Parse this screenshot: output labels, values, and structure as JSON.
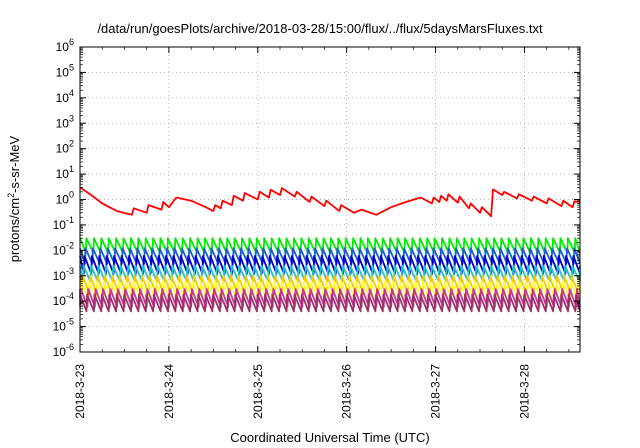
{
  "chart_data": {
    "type": "line",
    "title": "/data/run/goesPlots/archive/2018-03-28/15:00/flux/../flux/5daysMarsFluxes.txt",
    "xlabel": "Coordinated Universal Time (UTC)",
    "ylabel_main": "protons/cm",
    "ylabel_sup": "2",
    "ylabel_rest": "-s-sr-MeV",
    "x_scale": "time",
    "y_scale": "log",
    "xlim": [
      "2018-03-23T00:00",
      "2018-03-28T15:00"
    ],
    "ylim": [
      1e-06,
      1000000.0
    ],
    "grid": true,
    "legend": "none",
    "x_ticks": [
      "2018-3-23",
      "2018-3-24",
      "2018-3-25",
      "2018-3-26",
      "2018-3-27",
      "2018-3-28"
    ],
    "y_ticks": [
      {
        "base": "10",
        "exp": "-6"
      },
      {
        "base": "10",
        "exp": "-5"
      },
      {
        "base": "10",
        "exp": "-4"
      },
      {
        "base": "10",
        "exp": "-3"
      },
      {
        "base": "10",
        "exp": "-2"
      },
      {
        "base": "10",
        "exp": "-1"
      },
      {
        "base": "10",
        "exp": "0"
      },
      {
        "base": "10",
        "exp": "1"
      },
      {
        "base": "10",
        "exp": "2"
      },
      {
        "base": "10",
        "exp": "3"
      },
      {
        "base": "10",
        "exp": "4"
      },
      {
        "base": "10",
        "exp": "5"
      },
      {
        "base": "10",
        "exp": "6"
      }
    ],
    "series": [
      {
        "color": "#ff0000",
        "x": [
          "2018-03-23T00:00",
          "2018-03-23T03:00",
          "2018-03-23T06:00",
          "2018-03-23T10:00",
          "2018-03-23T14:00",
          "2018-03-23T14:30",
          "2018-03-23T18:00",
          "2018-03-23T18:30",
          "2018-03-23T22:00",
          "2018-03-23T22:30",
          "2018-03-24T00:00",
          "2018-03-24T02:00",
          "2018-03-24T06:00",
          "2018-03-24T10:00",
          "2018-03-24T12:00",
          "2018-03-24T12:30",
          "2018-03-24T14:00",
          "2018-03-24T14:30",
          "2018-03-24T17:00",
          "2018-03-24T17:30",
          "2018-03-24T20:00",
          "2018-03-24T20:30",
          "2018-03-25T00:00",
          "2018-03-25T00:30",
          "2018-03-25T03:00",
          "2018-03-25T03:30",
          "2018-03-25T06:00",
          "2018-03-25T06:30",
          "2018-03-25T10:00",
          "2018-03-25T10:30",
          "2018-03-25T14:00",
          "2018-03-25T14:30",
          "2018-03-25T18:00",
          "2018-03-25T18:30",
          "2018-03-25T22:00",
          "2018-03-25T22:30",
          "2018-03-26T02:00",
          "2018-03-26T04:00",
          "2018-03-26T08:00",
          "2018-03-26T12:00",
          "2018-03-26T16:00",
          "2018-03-26T20:00",
          "2018-03-26T23:00",
          "2018-03-26T23:30",
          "2018-03-27T01:00",
          "2018-03-27T01:30",
          "2018-03-27T03:00",
          "2018-03-27T03:30",
          "2018-03-27T06:00",
          "2018-03-27T06:30",
          "2018-03-27T09:00",
          "2018-03-27T09:30",
          "2018-03-27T12:00",
          "2018-03-27T12:30",
          "2018-03-27T15:00",
          "2018-03-27T15:30",
          "2018-03-27T18:00",
          "2018-03-27T18:30",
          "2018-03-27T22:00",
          "2018-03-27T22:30",
          "2018-03-28T02:00",
          "2018-03-28T02:30",
          "2018-03-28T06:00",
          "2018-03-28T06:30",
          "2018-03-28T10:00",
          "2018-03-28T10:30",
          "2018-03-28T13:00",
          "2018-03-28T13:30",
          "2018-03-28T15:00"
        ],
        "y": [
          3.0,
          1.5,
          0.7,
          0.35,
          0.25,
          0.45,
          0.3,
          0.6,
          0.4,
          0.8,
          0.5,
          1.2,
          0.9,
          0.5,
          0.35,
          0.6,
          0.45,
          0.9,
          0.6,
          1.4,
          0.9,
          1.8,
          1.0,
          2.0,
          1.2,
          2.4,
          1.5,
          2.8,
          1.3,
          2.0,
          0.8,
          1.3,
          0.55,
          0.9,
          0.35,
          0.6,
          0.3,
          0.4,
          0.25,
          0.5,
          0.8,
          1.2,
          0.7,
          1.2,
          0.8,
          1.4,
          0.9,
          1.6,
          0.75,
          1.3,
          0.45,
          0.7,
          0.3,
          0.5,
          0.22,
          2.5,
          1.5,
          2.0,
          1.1,
          1.6,
          0.9,
          1.3,
          0.7,
          1.1,
          0.55,
          0.9,
          0.5,
          0.85,
          0.8
        ]
      },
      {
        "color": "#00ee00",
        "base_low": 0.008,
        "base_high": 0.03
      },
      {
        "color": "#1a5fd6",
        "base_low": 0.003,
        "base_high": 0.012
      },
      {
        "color": "#0000cc",
        "base_low": 0.0012,
        "base_high": 0.006
      },
      {
        "color": "#22c5c5",
        "base_low": 0.0006,
        "base_high": 0.0025
      },
      {
        "color": "#ffc800",
        "base_low": 0.0002,
        "base_high": 0.001
      },
      {
        "color": "#ffff44",
        "base_low": 0.00012,
        "base_high": 0.0006
      },
      {
        "color": "#cc3399",
        "base_low": 6e-05,
        "base_high": 0.0003
      },
      {
        "color": "#993366",
        "base_low": 4e-05,
        "base_high": 0.00018
      }
    ],
    "sawtooth_period_hours": 2.0
  }
}
